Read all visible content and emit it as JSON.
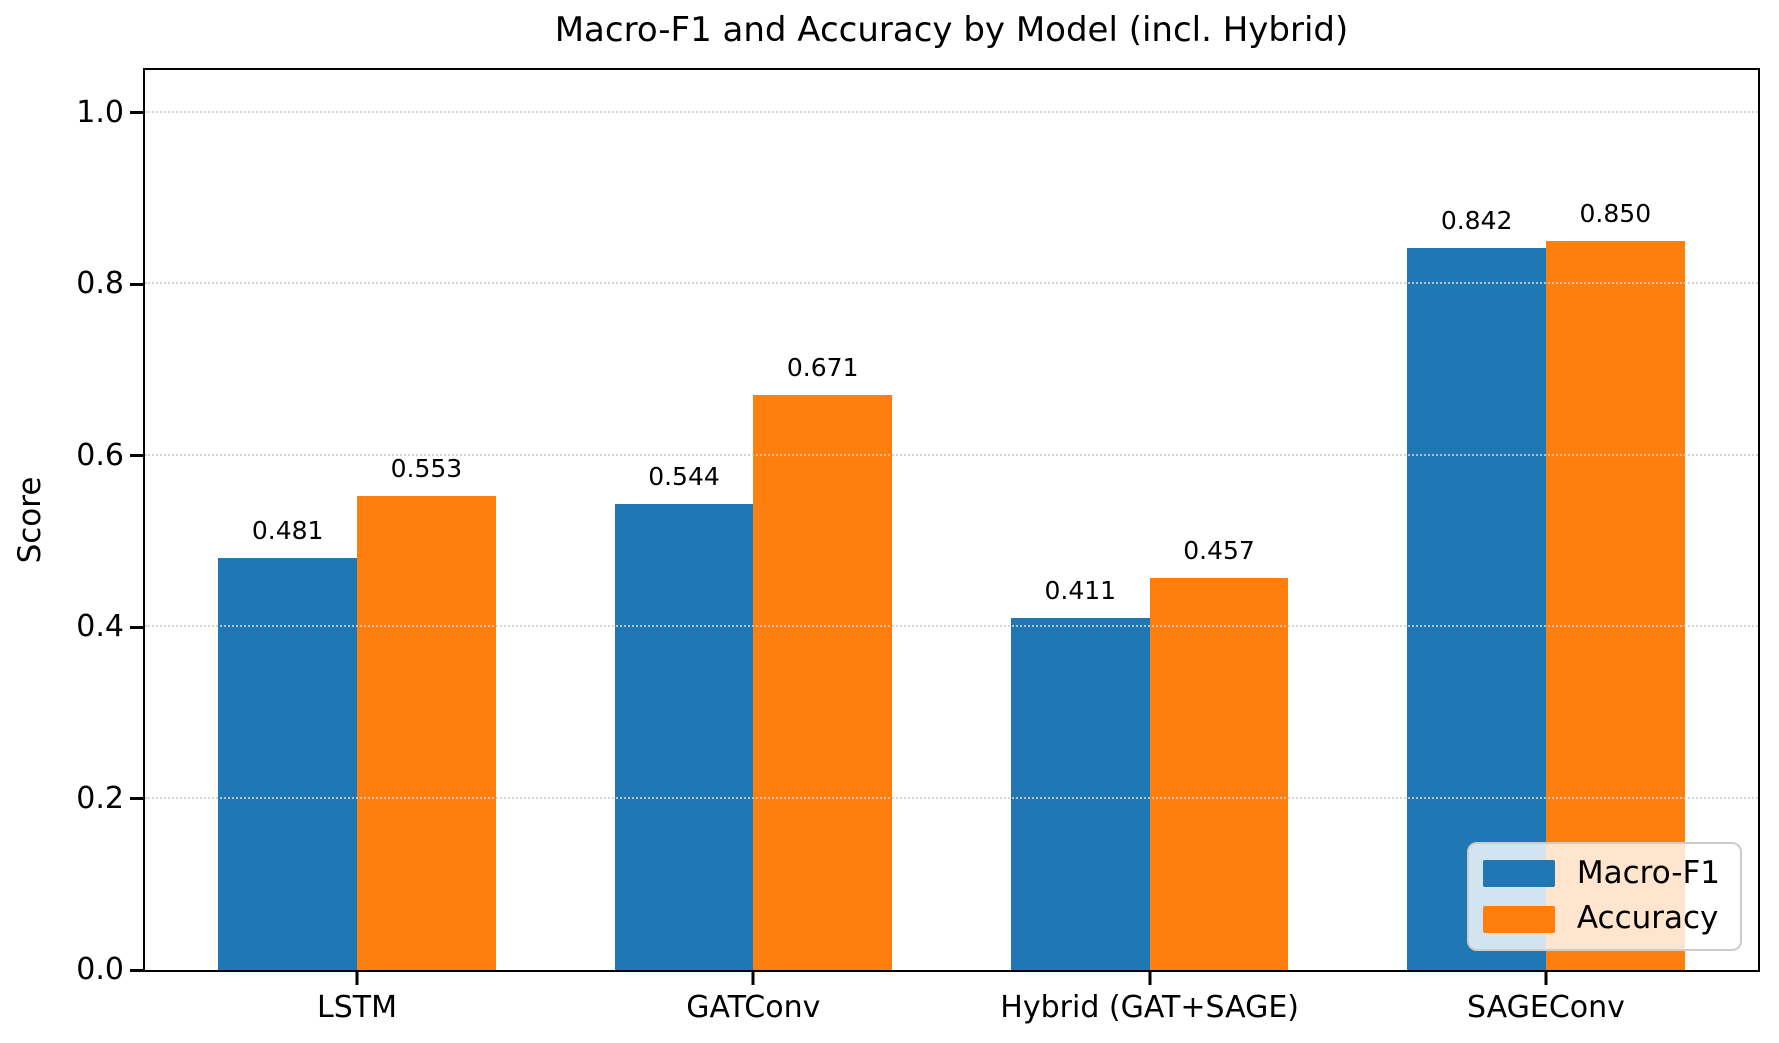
{
  "chart_data": {
    "type": "bar",
    "title": "Macro-F1 and Accuracy by Model (incl. Hybrid)",
    "ylabel": "Score",
    "xlabel": "",
    "categories": [
      "LSTM",
      "GATConv",
      "Hybrid (GAT+SAGE)",
      "SAGEConv"
    ],
    "series": [
      {
        "name": "Macro-F1",
        "color": "#1f77b4",
        "values": [
          0.481,
          0.544,
          0.411,
          0.842
        ],
        "value_labels": [
          "0.481",
          "0.544",
          "0.411",
          "0.842"
        ]
      },
      {
        "name": "Accuracy",
        "color": "#ff7f0e",
        "values": [
          0.553,
          0.671,
          0.457,
          0.85
        ],
        "value_labels": [
          "0.553",
          "0.671",
          "0.457",
          "0.850"
        ]
      }
    ],
    "ylim": [
      0,
      1.05
    ],
    "yticks": [
      0.0,
      0.2,
      0.4,
      0.6,
      0.8,
      1.0
    ],
    "ytick_labels": [
      "0.0",
      "0.2",
      "0.4",
      "0.6",
      "0.8",
      "1.0"
    ],
    "bar_width": 0.35,
    "grid": "horizontal dotted",
    "grid_color": "#cdcdcd",
    "legend_position": "lower right",
    "spine_color": "#000000",
    "background_color": "#ffffff"
  }
}
